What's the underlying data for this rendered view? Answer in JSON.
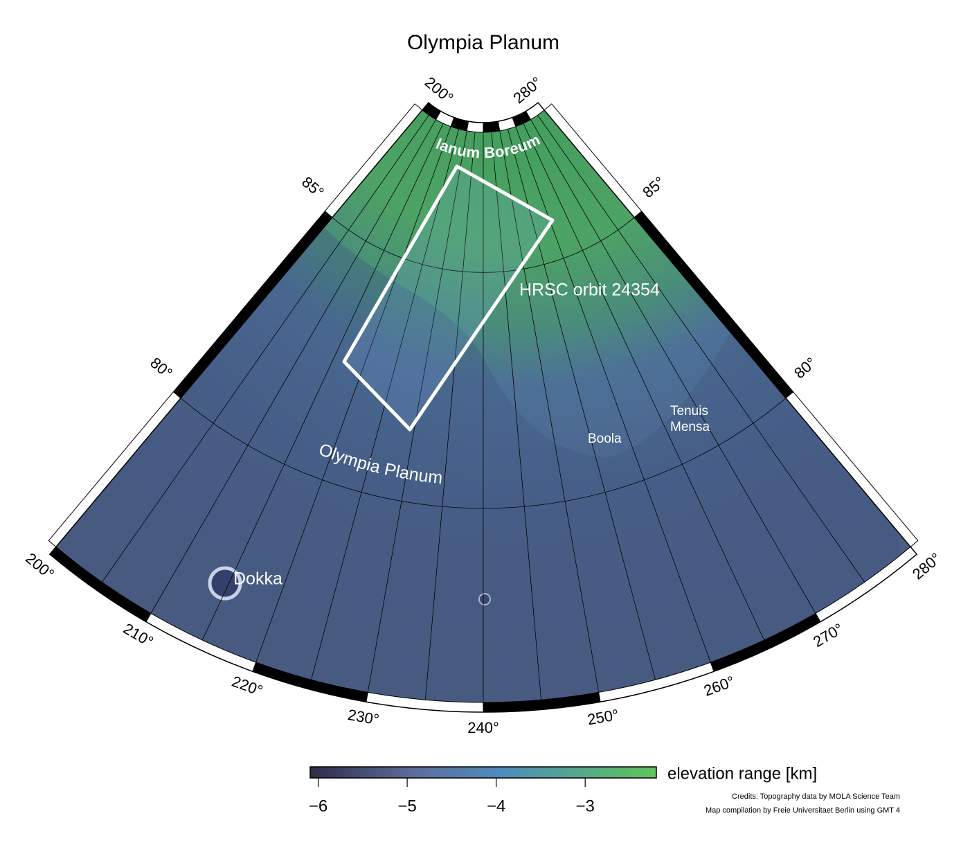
{
  "title": "Olympia Planum",
  "map": {
    "lon_ticks": [
      {
        "value": 200,
        "label": "200°"
      },
      {
        "value": 210,
        "label": "210°"
      },
      {
        "value": 220,
        "label": "220°"
      },
      {
        "value": 230,
        "label": "230°"
      },
      {
        "value": 240,
        "label": "240°"
      },
      {
        "value": 250,
        "label": "250°"
      },
      {
        "value": 260,
        "label": "260°"
      },
      {
        "value": 270,
        "label": "270°"
      },
      {
        "value": 280,
        "label": "280°"
      }
    ],
    "inner_lon_ticks": [
      {
        "value": 200,
        "label": "200°"
      },
      {
        "value": 280,
        "label": "280°"
      }
    ],
    "lat_ticks_left": [
      {
        "value": 85,
        "label": "85°"
      },
      {
        "value": 80,
        "label": "80°"
      }
    ],
    "lat_ticks_right": [
      {
        "value": 85,
        "label": "85°"
      },
      {
        "value": 80,
        "label": "80°"
      }
    ]
  },
  "places": [
    {
      "name": "Planum Boreum"
    },
    {
      "name": "HRSC orbit 24354"
    },
    {
      "name": "Olympia Planum"
    },
    {
      "name": "Boola"
    },
    {
      "lines": [
        "Tenuis",
        "Mensa"
      ]
    },
    {
      "name": "Dokka"
    }
  ],
  "colorbar": {
    "label": "elevation range [km]",
    "lim": [
      -6.09,
      -2.2
    ],
    "ticks": [
      {
        "value": -6,
        "label": "−6"
      },
      {
        "value": -5,
        "label": "−5"
      },
      {
        "value": -4,
        "label": "−4"
      },
      {
        "value": -3,
        "label": "−3"
      }
    ]
  },
  "credits": [
    "Credits: Topography data by MOLA Science Team",
    "Map compilation by Freie Universitaet Berlin using GMT 4"
  ]
}
